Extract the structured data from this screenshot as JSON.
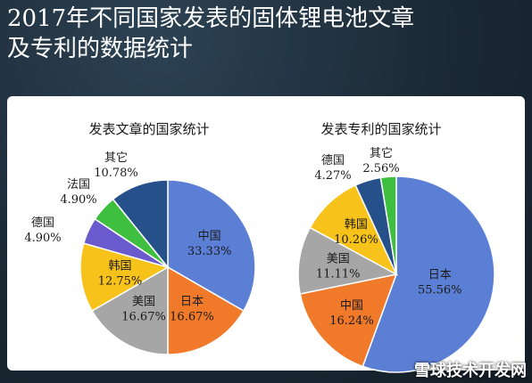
{
  "title_lines": [
    "2017年不同国家发表的固体锂电池文章",
    "及专利的数据统计"
  ],
  "footer_watermark": "雪球技术开发网",
  "colors": {
    "china": "#5b7fd4",
    "japan": "#f07a2a",
    "usa": "#a6a6a6",
    "korea": "#f7c21a",
    "germany": "#6a5acd",
    "france": "#3fbf3f",
    "other": "#25508a"
  },
  "chart_data": [
    {
      "type": "pie",
      "title": "发表文章的国家统计",
      "slices": [
        {
          "name": "中国",
          "value": 33.33,
          "label": "33.33%",
          "color_key": "china"
        },
        {
          "name": "日本",
          "value": 16.67,
          "label": "16.67%",
          "color_key": "japan"
        },
        {
          "name": "美国",
          "value": 16.67,
          "label": "16.67%",
          "color_key": "usa"
        },
        {
          "name": "韩国",
          "value": 12.75,
          "label": "12.75%",
          "color_key": "korea"
        },
        {
          "name": "德国",
          "value": 4.9,
          "label": "4.90%",
          "color_key": "germany"
        },
        {
          "name": "法国",
          "value": 4.9,
          "label": "4.90%",
          "color_key": "france"
        },
        {
          "name": "其它",
          "value": 10.78,
          "label": "10.78%",
          "color_key": "other"
        }
      ]
    },
    {
      "type": "pie",
      "title": "发表专利的国家统计",
      "slices": [
        {
          "name": "日本",
          "value": 55.56,
          "label": "55.56%",
          "color_key": "china"
        },
        {
          "name": "中国",
          "value": 16.24,
          "label": "16.24%",
          "color_key": "japan"
        },
        {
          "name": "美国",
          "value": 11.11,
          "label": "11.11%",
          "color_key": "usa"
        },
        {
          "name": "韩国",
          "value": 10.26,
          "label": "10.26%",
          "color_key": "korea"
        },
        {
          "name": "德国",
          "value": 4.27,
          "label": "4.27%",
          "color_key": "other"
        },
        {
          "name": "其它",
          "value": 2.56,
          "label": "2.56%",
          "color_key": "france"
        }
      ]
    }
  ]
}
